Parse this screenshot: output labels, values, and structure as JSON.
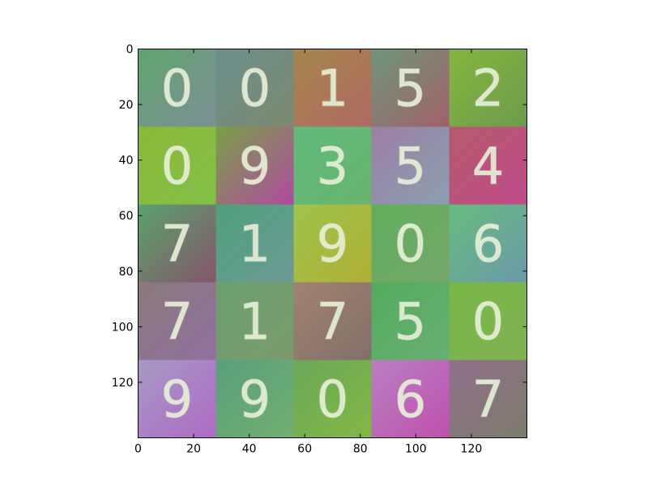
{
  "chart_data": {
    "type": "heatmap",
    "title": "",
    "xlabel": "",
    "ylabel": "",
    "xlim": [
      0,
      140
    ],
    "ylim": [
      140,
      0
    ],
    "grid": false,
    "cell_size": 28,
    "x_ticks": [
      0,
      20,
      40,
      60,
      80,
      100,
      120
    ],
    "y_ticks": [
      0,
      20,
      40,
      60,
      80,
      100,
      120
    ],
    "tiles": [
      [
        {
          "digit": "0",
          "colors": [
            "#5fa46f",
            "#7e8f96"
          ]
        },
        {
          "digit": "0",
          "colors": [
            "#6b8f8d",
            "#7d8a6e"
          ]
        },
        {
          "digit": "1",
          "colors": [
            "#a5864d",
            "#b06a62"
          ]
        },
        {
          "digit": "5",
          "colors": [
            "#6f967a",
            "#a2606a"
          ]
        },
        {
          "digit": "2",
          "colors": [
            "#85b53e",
            "#6e9b4d"
          ]
        }
      ],
      [
        {
          "digit": "0",
          "colors": [
            "#8cb838",
            "#82c048"
          ]
        },
        {
          "digit": "9",
          "colors": [
            "#7aa048",
            "#b04aa0"
          ]
        },
        {
          "digit": "3",
          "colors": [
            "#5fba7c",
            "#6ab46e"
          ]
        },
        {
          "digit": "5",
          "colors": [
            "#9c7fa4",
            "#8aa0b0"
          ]
        },
        {
          "digit": "4",
          "colors": [
            "#b45a6a",
            "#c04c8c"
          ]
        }
      ],
      [
        {
          "digit": "7",
          "colors": [
            "#5aa26c",
            "#85556b"
          ]
        },
        {
          "digit": "1",
          "colors": [
            "#50a07c",
            "#6c9a96"
          ]
        },
        {
          "digit": "9",
          "colors": [
            "#9ec44c",
            "#b0b034"
          ]
        },
        {
          "digit": "0",
          "colors": [
            "#62ad5e",
            "#74a86a"
          ]
        },
        {
          "digit": "6",
          "colors": [
            "#69bb80",
            "#6a9aa8"
          ]
        }
      ],
      [
        {
          "digit": "7",
          "colors": [
            "#8a7a7a",
            "#9070a0"
          ]
        },
        {
          "digit": "1",
          "colors": [
            "#6aa070",
            "#7c9a6c"
          ]
        },
        {
          "digit": "7",
          "colors": [
            "#a28272",
            "#80706a"
          ]
        },
        {
          "digit": "5",
          "colors": [
            "#52ac5c",
            "#6aae74"
          ]
        },
        {
          "digit": "0",
          "colors": [
            "#78b84a",
            "#80b050"
          ]
        }
      ],
      [
        {
          "digit": "9",
          "colors": [
            "#a49ac4",
            "#b06ac4"
          ]
        },
        {
          "digit": "9",
          "colors": [
            "#5a9e7c",
            "#70b070"
          ]
        },
        {
          "digit": "0",
          "colors": [
            "#6aa85a",
            "#84b844"
          ]
        },
        {
          "digit": "6",
          "colors": [
            "#b880c0",
            "#c050b0"
          ]
        },
        {
          "digit": "7",
          "colors": [
            "#90708a",
            "#7c7c6c"
          ]
        }
      ]
    ]
  }
}
